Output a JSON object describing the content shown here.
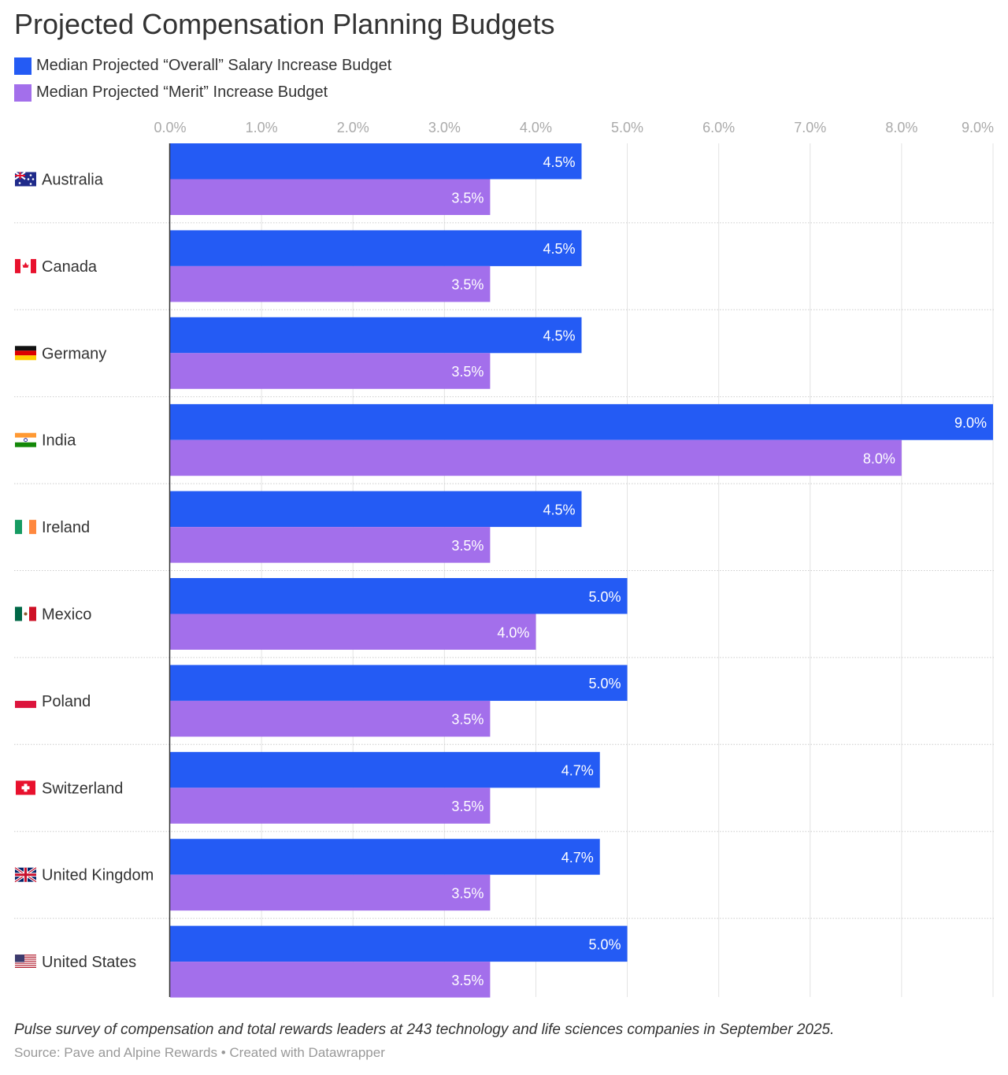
{
  "title": "Projected Compensation Planning Budgets",
  "legend": [
    {
      "label": "Median Projected “Overall” Salary Increase Budget",
      "color": "#245BF4"
    },
    {
      "label": "Median Projected “Merit” Increase Budget",
      "color": "#A36FEB"
    }
  ],
  "footer": {
    "note": "Pulse survey of compensation and total rewards leaders at 243 technology and life sciences companies in September 2025.",
    "source": "Source: Pave and Alpine Rewards • Created with Datawrapper"
  },
  "chart_data": {
    "type": "bar",
    "orientation": "horizontal",
    "title": "Projected Compensation Planning Budgets",
    "categories": [
      "Australia",
      "Canada",
      "Germany",
      "India",
      "Ireland",
      "Mexico",
      "Poland",
      "Switzerland",
      "United Kingdom",
      "United States"
    ],
    "flag_icons": [
      "flag-australia-icon",
      "flag-canada-icon",
      "flag-germany-icon",
      "flag-india-icon",
      "flag-ireland-icon",
      "flag-mexico-icon",
      "flag-poland-icon",
      "flag-switzerland-icon",
      "flag-united-kingdom-icon",
      "flag-united-states-icon"
    ],
    "series": [
      {
        "name": "Median Projected “Overall” Salary Increase Budget",
        "color": "#245BF4",
        "values": [
          4.5,
          4.5,
          4.5,
          9.0,
          4.5,
          5.0,
          5.0,
          4.7,
          4.7,
          5.0
        ],
        "labels": [
          "4.5%",
          "4.5%",
          "4.5%",
          "9.0%",
          "4.5%",
          "5.0%",
          "5.0%",
          "4.7%",
          "4.7%",
          "5.0%"
        ]
      },
      {
        "name": "Median Projected “Merit” Increase Budget",
        "color": "#A36FEB",
        "values": [
          3.5,
          3.5,
          3.5,
          8.0,
          3.5,
          4.0,
          3.5,
          3.5,
          3.5,
          3.5
        ],
        "labels": [
          "3.5%",
          "3.5%",
          "3.5%",
          "8.0%",
          "3.5%",
          "4.0%",
          "3.5%",
          "3.5%",
          "3.5%",
          "3.5%"
        ]
      }
    ],
    "xlim": [
      0,
      9
    ],
    "xticks": [
      "0.0%",
      "1.0%",
      "2.0%",
      "3.0%",
      "4.0%",
      "5.0%",
      "6.0%",
      "7.0%",
      "8.0%",
      "9.0%"
    ],
    "xaxis_position": "top",
    "grid": true,
    "legend_position": "top-left"
  }
}
